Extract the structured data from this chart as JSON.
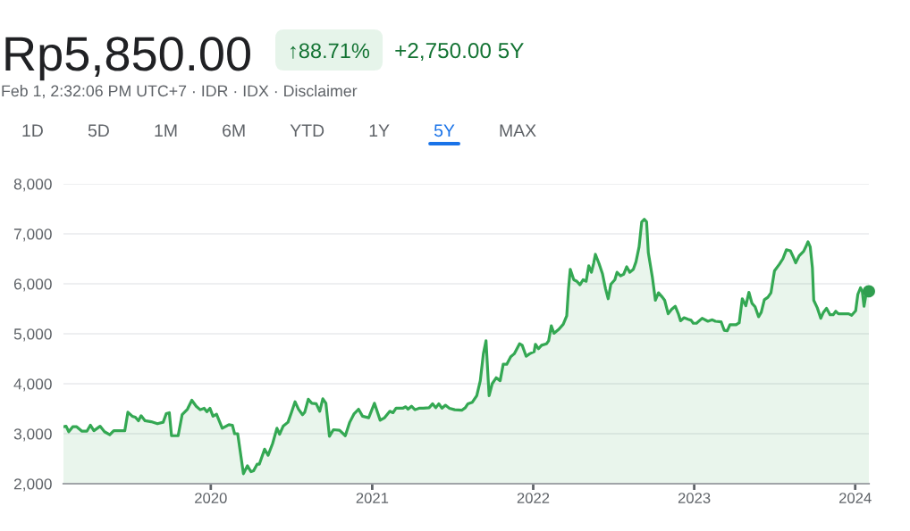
{
  "chart_data": {
    "type": "area",
    "title": "Rp5,850.00",
    "subtitle": "Feb 1, 2:32:06 PM UTC+7 · IDR · IDX · Disclaimer",
    "annotations": [
      "↑88.71%",
      "+2,750.00 5Y",
      "1D",
      "5D",
      "1M",
      "6M",
      "YTD",
      "1Y",
      "5Y",
      "MAX"
    ],
    "xlim": [
      "2019-02-01",
      "2024-02-01"
    ],
    "xticks": [
      {
        "value": "2020-01-01",
        "label": "2020"
      },
      {
        "value": "2021-01-01",
        "label": "2021"
      },
      {
        "value": "2022-01-01",
        "label": "2022"
      },
      {
        "value": "2023-01-01",
        "label": "2023"
      },
      {
        "value": "2024-01-01",
        "label": "2024"
      }
    ],
    "ylim": [
      2000,
      8000
    ],
    "yticks": [
      {
        "value": 2000,
        "label": "2,000"
      },
      {
        "value": 3000,
        "label": "3,000"
      },
      {
        "value": 4000,
        "label": "4,000"
      },
      {
        "value": 5000,
        "label": "5,000"
      },
      {
        "value": 6000,
        "label": "6,000"
      },
      {
        "value": 7000,
        "label": "7,000"
      },
      {
        "value": 8000,
        "label": "8,000"
      }
    ],
    "grid": "y",
    "series": [
      {
        "color": "#34a853",
        "x": [
          "2019-02-01",
          "2019-02-07",
          "2019-02-13",
          "2019-02-22",
          "2019-03-03",
          "2019-03-15",
          "2019-03-26",
          "2019-04-03",
          "2019-04-11",
          "2019-04-25",
          "2019-05-05",
          "2019-05-17",
          "2019-05-26",
          "2019-06-08",
          "2019-06-20",
          "2019-06-27",
          "2019-07-07",
          "2019-07-14",
          "2019-07-21",
          "2019-07-27",
          "2019-08-05",
          "2019-08-19",
          "2019-09-02",
          "2019-09-15",
          "2019-09-22",
          "2019-09-29",
          "2019-10-04",
          "2019-10-19",
          "2019-10-28",
          "2019-11-09",
          "2019-11-19",
          "2019-11-29",
          "2019-12-08",
          "2019-12-17",
          "2019-12-23",
          "2019-12-30",
          "2020-01-06",
          "2020-01-14",
          "2020-01-27",
          "2020-02-11",
          "2020-02-19",
          "2020-02-24",
          "2020-03-02",
          "2020-03-15",
          "2020-03-24",
          "2020-04-01",
          "2020-04-07",
          "2020-04-15",
          "2020-04-20",
          "2020-05-02",
          "2020-05-10",
          "2020-05-20",
          "2020-05-30",
          "2020-06-05",
          "2020-06-13",
          "2020-06-24",
          "2020-07-02",
          "2020-07-10",
          "2020-07-18",
          "2020-07-27",
          "2020-08-01",
          "2020-08-09",
          "2020-08-17",
          "2020-08-27",
          "2020-09-04",
          "2020-09-11",
          "2020-09-18",
          "2020-09-26",
          "2020-10-05",
          "2020-10-19",
          "2020-11-01",
          "2020-11-11",
          "2020-11-21",
          "2020-12-01",
          "2020-12-10",
          "2020-12-24",
          "2021-01-06",
          "2021-01-19",
          "2021-01-29",
          "2021-02-10",
          "2021-02-17",
          "2021-02-24",
          "2021-03-11",
          "2021-03-18",
          "2021-03-23",
          "2021-03-31",
          "2021-04-08",
          "2021-04-17",
          "2021-04-27",
          "2021-05-10",
          "2021-05-18",
          "2021-05-25",
          "2021-06-01",
          "2021-06-08",
          "2021-06-16",
          "2021-06-25",
          "2021-07-07",
          "2021-07-23",
          "2021-07-31",
          "2021-08-06",
          "2021-08-16",
          "2021-08-26",
          "2021-09-03",
          "2021-09-10",
          "2021-09-16",
          "2021-09-18",
          "2021-09-23",
          "2021-09-30",
          "2021-10-09",
          "2021-10-18",
          "2021-10-25",
          "2021-11-02",
          "2021-11-11",
          "2021-11-19",
          "2021-12-01",
          "2021-12-07",
          "2021-12-16",
          "2021-12-24",
          "2022-01-03",
          "2022-01-06",
          "2022-01-13",
          "2022-01-20",
          "2022-01-31",
          "2022-02-05",
          "2022-02-11",
          "2022-02-17",
          "2022-02-28",
          "2022-03-10",
          "2022-03-18",
          "2022-03-22",
          "2022-03-26",
          "2022-04-03",
          "2022-04-10",
          "2022-04-17",
          "2022-04-24",
          "2022-05-01",
          "2022-05-07",
          "2022-05-13",
          "2022-05-18",
          "2022-05-22",
          "2022-05-30",
          "2022-06-07",
          "2022-06-14",
          "2022-06-20",
          "2022-06-26",
          "2022-07-05",
          "2022-07-10",
          "2022-07-18",
          "2022-07-25",
          "2022-08-01",
          "2022-08-08",
          "2022-08-16",
          "2022-08-22",
          "2022-08-29",
          "2022-09-04",
          "2022-09-10",
          "2022-09-15",
          "2022-09-19",
          "2022-09-28",
          "2022-10-05",
          "2022-10-12",
          "2022-10-21",
          "2022-10-26",
          "2022-11-03",
          "2022-11-11",
          "2022-11-19",
          "2022-11-26",
          "2022-12-01",
          "2022-12-09",
          "2022-12-18",
          "2022-12-25",
          "2022-12-30",
          "2023-01-06",
          "2023-01-19",
          "2023-02-01",
          "2023-02-11",
          "2023-02-18",
          "2023-03-03",
          "2023-03-10",
          "2023-03-17",
          "2023-03-23",
          "2023-04-06",
          "2023-04-13",
          "2023-04-20",
          "2023-04-28",
          "2023-05-05",
          "2023-05-12",
          "2023-05-19",
          "2023-05-27",
          "2023-06-02",
          "2023-06-09",
          "2023-06-17",
          "2023-06-24",
          "2023-07-02",
          "2023-07-13",
          "2023-07-21",
          "2023-07-29",
          "2023-08-07",
          "2023-08-14",
          "2023-08-19",
          "2023-08-27",
          "2023-09-06",
          "2023-09-11",
          "2023-09-16",
          "2023-09-21",
          "2023-09-26",
          "2023-09-29",
          "2023-10-07",
          "2023-10-15",
          "2023-10-21",
          "2023-10-28",
          "2023-11-05",
          "2023-11-12",
          "2023-11-18",
          "2023-11-24",
          "2023-12-07",
          "2023-12-17",
          "2023-12-24",
          "2024-01-02",
          "2024-01-07",
          "2024-01-13",
          "2024-01-17",
          "2024-01-21",
          "2024-01-25",
          "2024-02-01"
        ],
        "values": [
          3140,
          3150,
          3040,
          3140,
          3140,
          3050,
          3050,
          3170,
          3060,
          3150,
          3040,
          2980,
          3060,
          3060,
          3060,
          3430,
          3350,
          3330,
          3260,
          3360,
          3260,
          3240,
          3200,
          3230,
          3400,
          3420,
          2960,
          2960,
          3380,
          3490,
          3670,
          3550,
          3480,
          3510,
          3440,
          3510,
          3350,
          3390,
          3110,
          3180,
          3170,
          3000,
          3000,
          2200,
          2360,
          2240,
          2260,
          2390,
          2390,
          2690,
          2570,
          2800,
          3110,
          2990,
          3150,
          3230,
          3430,
          3640,
          3490,
          3380,
          3430,
          3690,
          3610,
          3600,
          3450,
          3700,
          3610,
          2950,
          3080,
          3070,
          2960,
          3230,
          3400,
          3490,
          3350,
          3320,
          3610,
          3270,
          3320,
          3450,
          3420,
          3510,
          3510,
          3540,
          3490,
          3550,
          3480,
          3510,
          3510,
          3520,
          3600,
          3520,
          3600,
          3510,
          3570,
          3510,
          3480,
          3470,
          3520,
          3600,
          3630,
          3760,
          4060,
          4600,
          4860,
          4540,
          3760,
          4000,
          4120,
          4060,
          4390,
          4390,
          4540,
          4600,
          4800,
          4770,
          4550,
          4600,
          4640,
          4790,
          4700,
          4770,
          4800,
          4860,
          5160,
          5010,
          5090,
          5190,
          5360,
          5900,
          6290,
          6080,
          6050,
          5980,
          6080,
          6050,
          6360,
          6230,
          6410,
          6590,
          6410,
          6200,
          5900,
          5700,
          5990,
          6080,
          6230,
          6160,
          6190,
          6340,
          6230,
          6290,
          6440,
          6740,
          7240,
          7290,
          7240,
          6620,
          6140,
          5670,
          5820,
          5730,
          5670,
          5400,
          5490,
          5550,
          5400,
          5260,
          5320,
          5290,
          5270,
          5210,
          5210,
          5310,
          5250,
          5280,
          5250,
          5240,
          5070,
          5060,
          5180,
          5180,
          5220,
          5700,
          5560,
          5830,
          5610,
          5540,
          5340,
          5430,
          5680,
          5730,
          5820,
          6260,
          6390,
          6500,
          6680,
          6660,
          6530,
          6420,
          6560,
          6650,
          6740,
          6840,
          6740,
          6320,
          5670,
          5520,
          5310,
          5430,
          5510,
          5380,
          5380,
          5450,
          5400,
          5400,
          5400,
          5370,
          5460,
          5790,
          5920,
          5850,
          5550,
          5760,
          5850
        ]
      },
      {
        "type": "scatter",
        "color": "#2f9e4f",
        "x": [
          "2024-02-01"
        ],
        "values": [
          5850
        ]
      }
    ]
  }
}
